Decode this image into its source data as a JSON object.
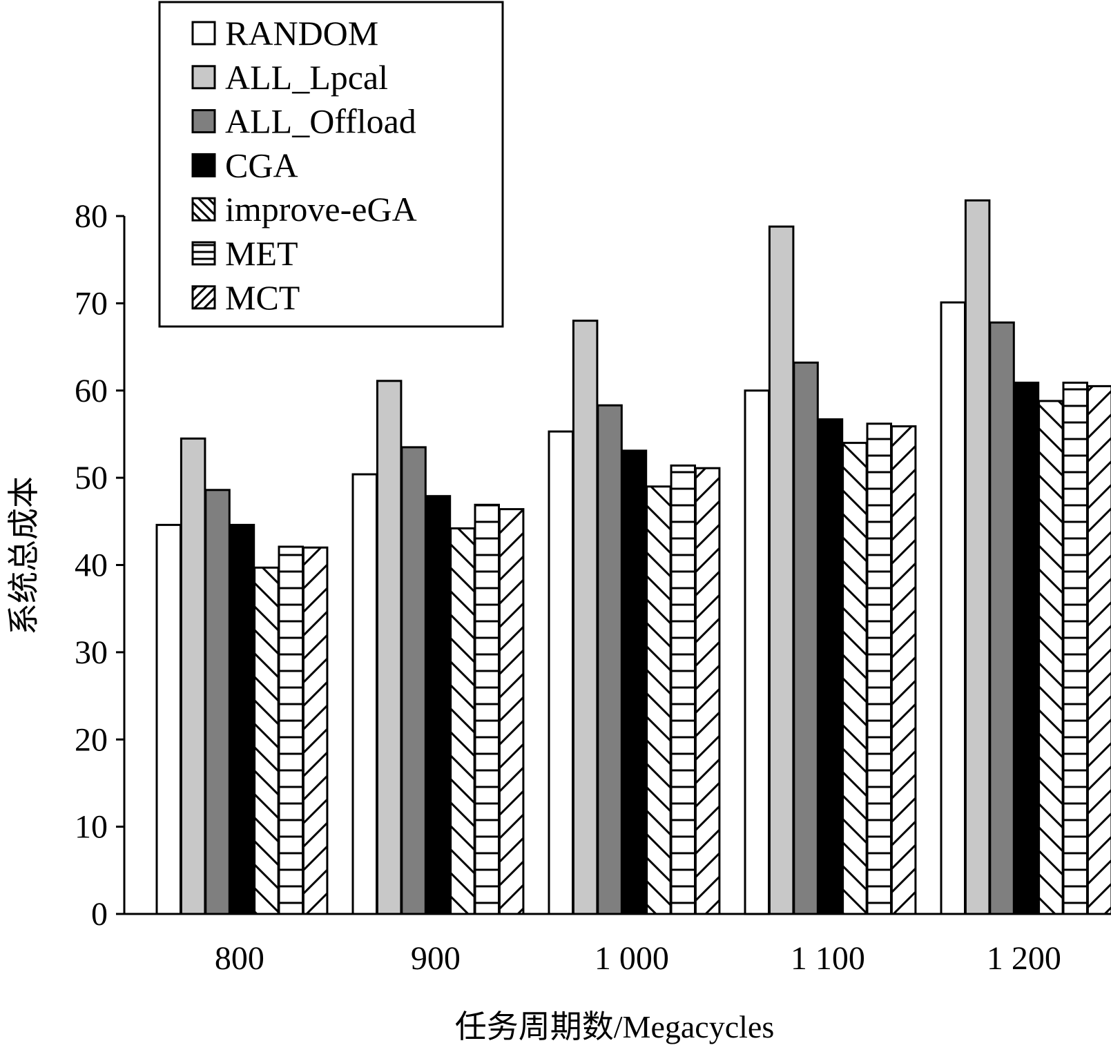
{
  "chart_data": {
    "type": "bar",
    "title": "",
    "xlabel": "任务周期数/Megacycles",
    "ylabel": "系统总成本",
    "categories": [
      "800",
      "900",
      "1 000",
      "1 100",
      "1 200"
    ],
    "ylim": [
      0,
      80
    ],
    "yticks": [
      0,
      10,
      20,
      30,
      40,
      50,
      60,
      70,
      80
    ],
    "grid": false,
    "legend_position": "top-left",
    "series": [
      {
        "name": "RANDOM",
        "pattern": "white",
        "values": [
          44.6,
          50.4,
          55.3,
          60.0,
          70.1
        ]
      },
      {
        "name": "ALL_Lpcal",
        "pattern": "lightgray",
        "values": [
          54.5,
          61.1,
          68.0,
          78.8,
          81.8
        ]
      },
      {
        "name": "ALL_Offload",
        "pattern": "darkgray",
        "values": [
          48.6,
          53.5,
          58.3,
          63.2,
          67.8
        ]
      },
      {
        "name": "CGA",
        "pattern": "black",
        "values": [
          44.6,
          47.9,
          53.1,
          56.7,
          60.9
        ]
      },
      {
        "name": "improve-eGA",
        "pattern": "backdiag",
        "values": [
          39.7,
          44.2,
          49.0,
          54.0,
          58.8
        ]
      },
      {
        "name": "MET",
        "pattern": "horiz",
        "values": [
          42.1,
          46.9,
          51.4,
          56.2,
          60.9
        ]
      },
      {
        "name": "MCT",
        "pattern": "fwddiag",
        "values": [
          42.0,
          46.4,
          51.1,
          55.9,
          60.5
        ]
      }
    ],
    "colors": {
      "white": "#ffffff",
      "lightgray": "#c8c8c8",
      "darkgray": "#7f7f7f",
      "black": "#000000",
      "stroke": "#000000"
    }
  }
}
